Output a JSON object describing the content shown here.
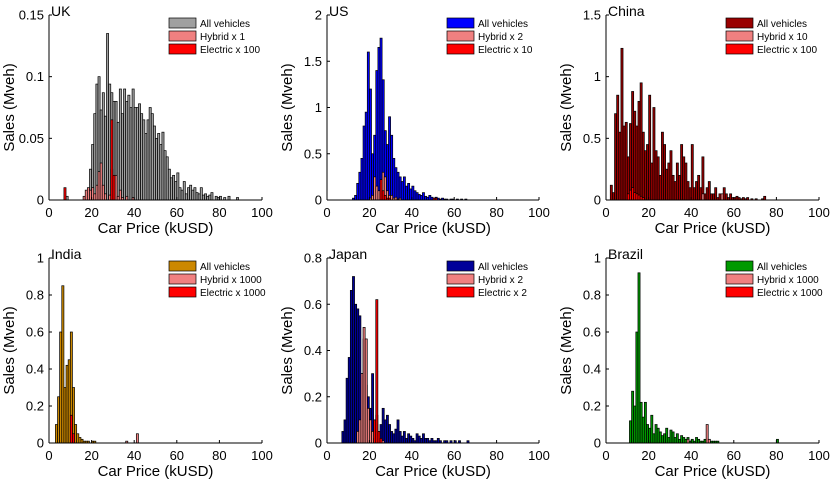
{
  "figure": {
    "xlabel": "Car Price (kUSD)",
    "ylabel": "Sales (Mveh)"
  },
  "chart_data": [
    {
      "type": "bar",
      "title": "UK",
      "xlabel": "Car Price (kUSD)",
      "ylabel": "Sales (Mveh)",
      "xlim": [
        0,
        100
      ],
      "ylim": [
        0,
        0.15
      ],
      "xticks": [
        "0",
        "20",
        "40",
        "60",
        "80",
        "100"
      ],
      "yticks": [
        "0",
        "0.05",
        "0.1",
        "0.15"
      ],
      "legend_position": "top-right",
      "series": [
        {
          "name": "All vehicles",
          "color": "#a0a0a0",
          "x_start": 8,
          "bin_width": 1,
          "values": [
            0.003,
            0,
            0,
            0,
            0,
            0,
            0,
            0,
            0,
            0.003,
            0.008,
            0.025,
            0.045,
            0.07,
            0.094,
            0.1,
            0.073,
            0.087,
            0.068,
            0.135,
            0.094,
            0.087,
            0.08,
            0.08,
            0.063,
            0.09,
            0.07,
            0.09,
            0.08,
            0.085,
            0.075,
            0.09,
            0.075,
            0.075,
            0.078,
            0.07,
            0.065,
            0.054,
            0.065,
            0.075,
            0.07,
            0.06,
            0.05,
            0.054,
            0.045,
            0.055,
            0.04,
            0.035,
            0.025,
            0.018,
            0.02,
            0.015,
            0.022,
            0.01,
            0.008,
            0.015,
            0.005,
            0.01,
            0.012,
            0.008,
            0.01,
            0.006,
            0.005,
            0.01,
            0.004,
            0.005,
            0.003,
            0.004,
            0.006,
            0,
            0.003,
            0.002,
            0.003,
            0,
            0.002,
            0,
            0.003,
            0,
            0,
            0,
            0.002
          ]
        },
        {
          "name": "Hybrid x 1",
          "color": "#f08080",
          "x_start": 16,
          "bin_width": 1,
          "values": [
            0.003,
            0.008,
            0.01,
            0.008,
            0.01,
            0.005,
            0.012,
            0.023,
            0.03,
            0.012,
            0.005,
            0,
            0.004,
            0.025,
            0.005,
            0.02,
            0.003,
            0.008,
            0.002,
            0,
            0.003,
            0,
            0,
            0.002
          ]
        },
        {
          "name": "Electric x 100",
          "color": "#ff0000",
          "x_start": 7,
          "bin_width": 1,
          "values": [
            0.01,
            0,
            0,
            0,
            0,
            0,
            0,
            0,
            0,
            0,
            0,
            0,
            0,
            0,
            0,
            0,
            0,
            0,
            0,
            0,
            0,
            0,
            0.065,
            0.02
          ]
        }
      ]
    },
    {
      "type": "bar",
      "title": "US",
      "xlabel": "Car Price (kUSD)",
      "ylabel": "Sales (Mveh)",
      "xlim": [
        0,
        100
      ],
      "ylim": [
        0,
        2
      ],
      "xticks": [
        "0",
        "20",
        "40",
        "60",
        "80",
        "100"
      ],
      "yticks": [
        "0",
        "0.5",
        "1",
        "1.5",
        "2"
      ],
      "legend_position": "top-right",
      "series": [
        {
          "name": "All vehicles",
          "color": "#0000ff",
          "x_start": 12,
          "bin_width": 1,
          "values": [
            0.02,
            0.05,
            0.18,
            0.3,
            0.45,
            0.8,
            0.95,
            1.6,
            1.2,
            0.5,
            0.7,
            1.4,
            1.65,
            1.75,
            1.3,
            0.75,
            0.6,
            0.9,
            0.7,
            0.45,
            0.35,
            0.3,
            0.25,
            0.2,
            0.25,
            0.15,
            0.18,
            0.12,
            0.15,
            0.1,
            0.08,
            0.06,
            0.05,
            0.08,
            0.04,
            0.03,
            0.05,
            0.03,
            0.02,
            0.03,
            0.02,
            0.01,
            0.02,
            0.01,
            0.01,
            0,
            0.01,
            0.01,
            0,
            0.01,
            0,
            0.01,
            0,
            0.01
          ]
        },
        {
          "name": "Hybrid x 2",
          "color": "#f08080",
          "x_start": 20,
          "bin_width": 1,
          "values": [
            0.02,
            0.05,
            0.25,
            0.15,
            0.1,
            0.15,
            0.3,
            0.25,
            0.1,
            0.05,
            0.05,
            0.02,
            0.03,
            0.01,
            0.02
          ]
        },
        {
          "name": "Electric x 10",
          "color": "#ff0000",
          "x_start": 25,
          "bin_width": 1,
          "values": [
            0.22,
            0.1,
            0.05,
            0.02,
            0.02,
            0,
            0,
            0,
            0,
            0,
            0,
            0,
            0,
            0,
            0,
            0,
            0,
            0,
            0,
            0,
            0,
            0,
            0,
            0,
            0,
            0.02,
            0.02
          ]
        }
      ]
    },
    {
      "type": "bar",
      "title": "China",
      "xlabel": "Car Price (kUSD)",
      "ylabel": "Sales (Mveh)",
      "xlim": [
        0,
        100
      ],
      "ylim": [
        0,
        1.5
      ],
      "xticks": [
        "0",
        "20",
        "40",
        "60",
        "80",
        "100"
      ],
      "yticks": [
        "0",
        "0.5",
        "1",
        "1.5"
      ],
      "legend_position": "top-right",
      "series": [
        {
          "name": "All vehicles",
          "color": "#990000",
          "x_start": 2,
          "bin_width": 1,
          "values": [
            0.12,
            0.06,
            0.7,
            0.85,
            0.55,
            1.23,
            0.6,
            0.63,
            0.35,
            0.62,
            0.88,
            0.72,
            0.6,
            0.8,
            0.95,
            0.55,
            0.4,
            0.45,
            0.85,
            0.3,
            0.75,
            0.4,
            0.35,
            0.2,
            0.55,
            0.45,
            0.25,
            0.3,
            0.4,
            0.2,
            0.15,
            0.3,
            0.2,
            0.45,
            0.35,
            0.3,
            0.15,
            0.1,
            0.45,
            0.1,
            0.15,
            0.2,
            0.1,
            0.35,
            0.05,
            0.1,
            0.15,
            0.05,
            0.05,
            0.1,
            0.02,
            0.05,
            0.02,
            0.1,
            0.05,
            0.02,
            0.05,
            0.02,
            0.02,
            0.03,
            0.02,
            0.01,
            0.02,
            0.01,
            0.02,
            0,
            0.01,
            0,
            0.01,
            0,
            0,
            0.01,
            0.03
          ]
        },
        {
          "name": "Hybrid x 10",
          "color": "#f08080",
          "x_start": 45,
          "bin_width": 1,
          "values": [
            0.05,
            0,
            0,
            0,
            0,
            0,
            0,
            0,
            0,
            0.05
          ]
        },
        {
          "name": "Electric x 100",
          "color": "#ff0000",
          "x_start": 10,
          "bin_width": 1,
          "values": [
            0.05,
            0.08,
            0.1,
            0.06,
            0.05,
            0.04,
            0.03,
            0.02
          ]
        }
      ]
    },
    {
      "type": "bar",
      "title": "India",
      "xlabel": "Car Price (kUSD)",
      "ylabel": "Sales (Mveh)",
      "xlim": [
        0,
        100
      ],
      "ylim": [
        0,
        1
      ],
      "xticks": [
        "0",
        "20",
        "40",
        "60",
        "80",
        "100"
      ],
      "yticks": [
        "0",
        "0.2",
        "0.4",
        "0.6",
        "0.8",
        "1"
      ],
      "legend_position": "top-right",
      "series": [
        {
          "name": "All vehicles",
          "color": "#cc8800",
          "x_start": 3,
          "bin_width": 1,
          "values": [
            0.1,
            0.25,
            0.6,
            0.85,
            0.3,
            0.42,
            0.45,
            0.6,
            0.3,
            0.1,
            0.05,
            0.03,
            0.02,
            0.01,
            0.01,
            0.01,
            0,
            0.01,
            0.01
          ]
        },
        {
          "name": "Hybrid x 1000",
          "color": "#f08080",
          "x_start": 36,
          "bin_width": 1,
          "values": [
            0.01,
            0,
            0,
            0,
            0,
            0.05
          ]
        },
        {
          "name": "Electric x 1000",
          "color": "#ff0000",
          "x_start": 10,
          "bin_width": 1,
          "values": [
            0.15,
            0.05
          ]
        }
      ]
    },
    {
      "type": "bar",
      "title": "Japan",
      "xlabel": "Car Price (kUSD)",
      "ylabel": "Sales (Mveh)",
      "xlim": [
        0,
        100
      ],
      "ylim": [
        0,
        0.8
      ],
      "xticks": [
        "0",
        "20",
        "40",
        "60",
        "80",
        "100"
      ],
      "yticks": [
        "0",
        "0.2",
        "0.4",
        "0.6",
        "0.8"
      ],
      "legend_position": "top-right",
      "series": [
        {
          "name": "All vehicles",
          "color": "#000099",
          "x_start": 7,
          "bin_width": 1,
          "values": [
            0.05,
            0.1,
            0.28,
            0.37,
            0.66,
            0.72,
            0.6,
            0.58,
            0.55,
            0.3,
            0.45,
            0.25,
            0.2,
            0.15,
            0.3,
            0.1,
            0.12,
            0.05,
            0.08,
            0.15,
            0.1,
            0.12,
            0.08,
            0.05,
            0.04,
            0.06,
            0.1,
            0.05,
            0.03,
            0.05,
            0.02,
            0.04,
            0.03,
            0.02,
            0.01,
            0.04,
            0.03,
            0.02,
            0.04,
            0.02,
            0.02,
            0.01,
            0.02,
            0.01,
            0.01,
            0.02,
            0.01,
            0,
            0.01,
            0.01,
            0,
            0.01,
            0,
            0.01,
            0,
            0.01,
            0,
            0,
            0,
            0.01
          ]
        },
        {
          "name": "Hybrid x 2",
          "color": "#f08080",
          "x_start": 14,
          "bin_width": 1,
          "values": [
            0.05,
            0.1,
            0.3,
            0.5,
            0.45,
            0.15,
            0.1,
            0.05,
            0.02,
            0.08,
            0.02,
            0.01,
            0.01
          ]
        },
        {
          "name": "Electric x 2",
          "color": "#ff0000",
          "x_start": 22,
          "bin_width": 1,
          "values": [
            0.1,
            0.62,
            0.05,
            0.02
          ]
        }
      ]
    },
    {
      "type": "bar",
      "title": "Brazil",
      "xlabel": "Car Price (kUSD)",
      "ylabel": "Sales (Mveh)",
      "xlim": [
        0,
        100
      ],
      "ylim": [
        0,
        1
      ],
      "xticks": [
        "0",
        "20",
        "40",
        "60",
        "80",
        "100"
      ],
      "yticks": [
        "0",
        "0.2",
        "0.4",
        "0.6",
        "0.8",
        "1"
      ],
      "legend_position": "top-right",
      "series": [
        {
          "name": "All vehicles",
          "color": "#009900",
          "x_start": 11,
          "bin_width": 1,
          "values": [
            0.12,
            0.28,
            0.2,
            0.6,
            0.92,
            0.22,
            0.14,
            0.22,
            0.1,
            0.08,
            0.15,
            0.05,
            0.1,
            0.08,
            0.06,
            0.04,
            0.05,
            0.08,
            0.03,
            0.07,
            0.06,
            0.03,
            0.05,
            0.02,
            0.04,
            0.03,
            0.02,
            0.03,
            0.01,
            0.02,
            0.01,
            0.03,
            0.02,
            0.01,
            0.01,
            0.02,
            0.01,
            0,
            0.01,
            0.01,
            0.01,
            0.01,
            0,
            0,
            0,
            0,
            0,
            0,
            0,
            0,
            0,
            0,
            0,
            0,
            0,
            0,
            0,
            0,
            0,
            0,
            0,
            0,
            0,
            0,
            0,
            0,
            0,
            0,
            0,
            0.02
          ]
        },
        {
          "name": "Hybrid x 1000",
          "color": "#f08080",
          "x_start": 38,
          "bin_width": 1,
          "values": [
            0.02,
            0,
            0,
            0,
            0,
            0,
            0,
            0,
            0,
            0.1,
            0.02
          ]
        },
        {
          "name": "Electric x 1000",
          "color": "#ff0000",
          "x_start": 0,
          "bin_width": 1,
          "values": []
        }
      ]
    }
  ]
}
